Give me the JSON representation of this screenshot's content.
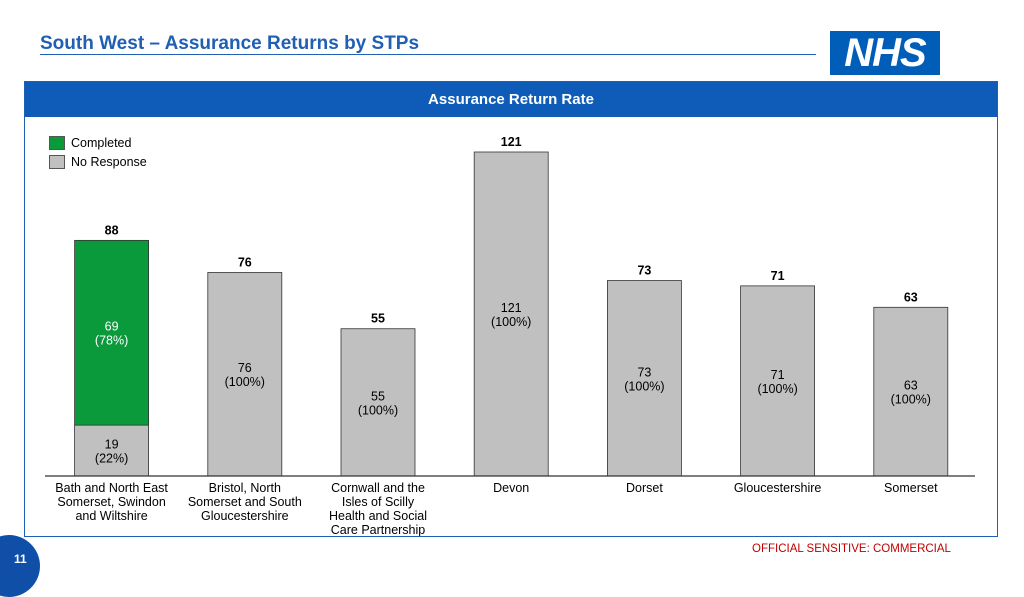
{
  "header": {
    "title": "South West – Assurance Returns by STPs",
    "logo_text": "NHS"
  },
  "panel": {
    "title": "Assurance Return Rate"
  },
  "legend": {
    "items": [
      {
        "label": "Completed",
        "color": "#0a9a3c"
      },
      {
        "label": "No Response",
        "color": "#c0c0c0"
      }
    ]
  },
  "chart_data": {
    "type": "bar",
    "stacked": true,
    "categories": [
      "Bath and North East Somerset, Swindon and Wiltshire",
      "Bristol, North Somerset and South Gloucestershire",
      "Cornwall and the Isles of Scilly Health and Social Care Partnership",
      "Devon",
      "Dorset",
      "Gloucestershire",
      "Somerset"
    ],
    "category_lines": [
      [
        "Bath and North East",
        "Somerset, Swindon",
        "and Wiltshire"
      ],
      [
        "Bristol, North",
        "Somerset and South",
        "Gloucestershire"
      ],
      [
        "Cornwall and the",
        "Isles of Scilly",
        "Health and Social",
        "Care Partnership"
      ],
      [
        "Devon"
      ],
      [
        "Dorset"
      ],
      [
        "Gloucestershire"
      ],
      [
        "Somerset"
      ]
    ],
    "series": [
      {
        "name": "No Response",
        "color": "#c0c0c0",
        "values": [
          19,
          76,
          55,
          121,
          73,
          71,
          63
        ],
        "labels": [
          "19\n(22%)",
          "76\n(100%)",
          "55\n(100%)",
          "121\n(100%)",
          "73\n(100%)",
          "71\n(100%)",
          "63\n(100%)"
        ]
      },
      {
        "name": "Completed",
        "color": "#0a9a3c",
        "values": [
          69,
          0,
          0,
          0,
          0,
          0,
          0
        ],
        "labels": [
          "69\n(78%)",
          "",
          "",
          "",
          "",
          "",
          ""
        ]
      }
    ],
    "totals": [
      88,
      76,
      55,
      121,
      73,
      71,
      63
    ],
    "ylim": [
      0,
      121
    ],
    "grid": false,
    "legend_position": "top-left"
  },
  "footer": {
    "classification": "OFFICIAL SENSITIVE: COMMERCIAL",
    "page_number": "11"
  }
}
